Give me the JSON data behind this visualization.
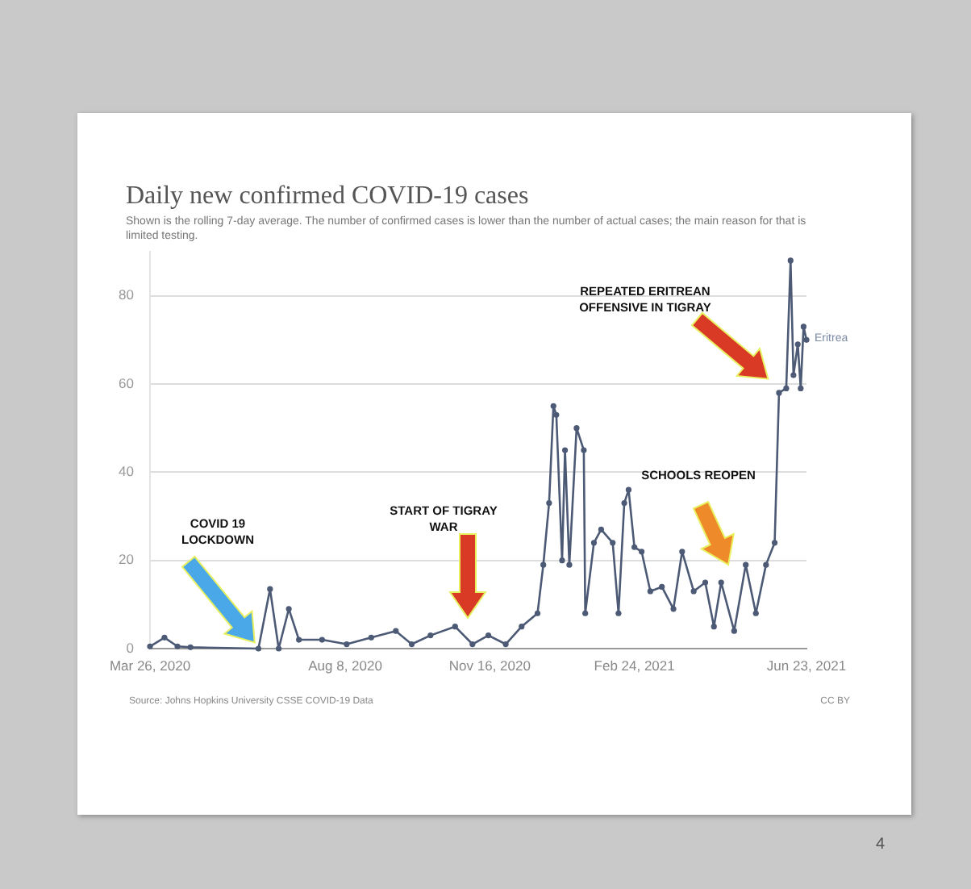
{
  "chart_data": {
    "type": "line",
    "title": "Daily new confirmed COVID-19 cases",
    "subtitle": "Shown is the rolling 7-day average. The number of confirmed cases is lower than the number of actual cases; the main reason for that is limited testing.",
    "x": [
      "2020-03-26",
      "2020-04-05",
      "2020-04-14",
      "2020-04-23",
      "2020-06-09",
      "2020-06-17",
      "2020-06-23",
      "2020-06-30",
      "2020-07-07",
      "2020-07-23",
      "2020-08-09",
      "2020-08-26",
      "2020-09-12",
      "2020-09-23",
      "2020-10-06",
      "2020-10-23",
      "2020-11-04",
      "2020-11-15",
      "2020-11-27",
      "2020-12-08",
      "2020-12-19",
      "2020-12-23",
      "2020-12-27",
      "2020-12-30",
      "2021-01-01",
      "2021-01-05",
      "2021-01-07",
      "2021-01-10",
      "2021-01-15",
      "2021-01-20",
      "2021-01-21",
      "2021-01-27",
      "2021-02-01",
      "2021-02-09",
      "2021-02-13",
      "2021-02-17",
      "2021-02-20",
      "2021-02-24",
      "2021-03-01",
      "2021-03-07",
      "2021-03-15",
      "2021-03-23",
      "2021-03-29",
      "2021-04-06",
      "2021-04-14",
      "2021-04-20",
      "2021-04-25",
      "2021-05-04",
      "2021-05-12",
      "2021-05-19",
      "2021-05-26",
      "2021-06-01",
      "2021-06-04",
      "2021-06-09",
      "2021-06-12",
      "2021-06-14",
      "2021-06-17",
      "2021-06-19",
      "2021-06-21",
      "2021-06-23"
    ],
    "series": [
      {
        "name": "Eritrea",
        "color": "#4c5a75",
        "values": [
          0.5,
          2.5,
          0.5,
          0.3,
          0,
          13.5,
          0,
          9,
          2,
          2,
          1,
          2.5,
          4,
          1,
          3,
          5,
          1,
          3,
          1,
          5,
          8,
          19,
          33,
          55,
          53,
          20,
          45,
          19,
          50,
          45,
          8,
          24,
          27,
          24,
          8,
          33,
          36,
          23,
          22,
          13,
          14,
          9,
          22,
          13,
          15,
          5,
          15,
          4,
          19,
          8,
          19,
          24,
          58,
          59,
          88,
          62,
          69,
          59,
          73,
          70
        ]
      }
    ],
    "xlim": [
      "2020-03-26",
      "2021-06-23"
    ],
    "xticks": [
      {
        "value": "2020-03-26",
        "label": "Mar 26, 2020"
      },
      {
        "value": "2020-08-08",
        "label": "Aug 8, 2020"
      },
      {
        "value": "2020-11-16",
        "label": "Nov 16, 2020"
      },
      {
        "value": "2021-02-24",
        "label": "Feb 24, 2021"
      },
      {
        "value": "2021-06-23",
        "label": "Jun 23, 2021"
      }
    ],
    "ylim": [
      0,
      90
    ],
    "yticks": [
      0,
      20,
      40,
      60,
      80
    ],
    "grid": "y",
    "legend": false,
    "marker": "circle",
    "line_style": "solid",
    "annotations": [
      "COVID 19 LOCKDOWN",
      "START OF TIGRAY WAR",
      "SCHOOLS REOPEN",
      "REPEATED ERITREAN OFFENSIVE IN TIGRAY",
      "Source: Johns Hopkins University CSSE COVID-19 Data",
      "CC BY",
      "4"
    ]
  }
}
